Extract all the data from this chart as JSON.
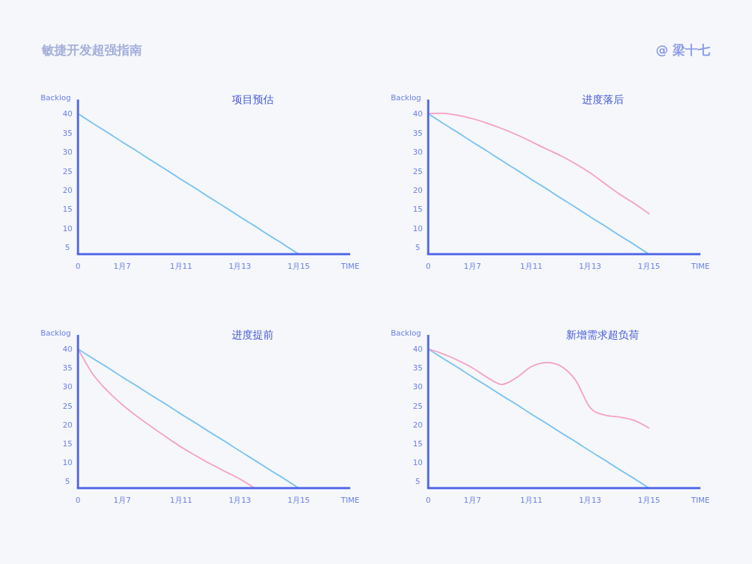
{
  "chart_data": [
    {
      "type": "line",
      "title": "项目预估",
      "ylabel": "Backlog",
      "xlabel": "TIME",
      "annotations": [
        "敏捷开发超强指南",
        "@ 梁十七"
      ],
      "categories": [
        "0",
        null,
        null,
        "1月7",
        null,
        null,
        null,
        "1月11",
        null,
        null,
        null,
        "1月13",
        null,
        null,
        null,
        "1月15",
        null,
        null,
        null
      ],
      "ylim": [
        3.2,
        43.7
      ],
      "yticks": [
        5,
        10,
        15,
        20,
        25,
        30,
        35,
        40
      ],
      "series": [
        {
          "color": "#7cc4f2",
          "values": [
            40,
            37.5,
            35.1,
            32.6,
            30.2,
            27.7,
            25.3,
            22.8,
            20.4,
            17.9,
            15.5,
            13,
            10.6,
            8.1,
            5.7,
            3.2,
            null,
            null,
            null
          ]
        }
      ]
    },
    {
      "type": "line",
      "title": "进度落后",
      "ylabel": "Backlog",
      "xlabel": "TIME",
      "categories": [
        "0",
        null,
        null,
        "1月7",
        null,
        null,
        null,
        "1月11",
        null,
        null,
        null,
        "1月13",
        null,
        null,
        null,
        "1月15",
        null,
        null,
        null
      ],
      "ylim": [
        3.2,
        43.7
      ],
      "yticks": [
        5,
        10,
        15,
        20,
        25,
        30,
        35,
        40
      ],
      "series": [
        {
          "color": "#7cc4f2",
          "values": [
            40,
            37.5,
            35.1,
            32.6,
            30.2,
            27.7,
            25.3,
            22.8,
            20.4,
            17.9,
            15.5,
            13,
            10.6,
            8.1,
            5.7,
            3.2,
            null,
            null,
            null
          ]
        },
        {
          "color": "#f5a3c7",
          "values": [
            40,
            40.1,
            39.6,
            38.7,
            37.5,
            36.1,
            34.5,
            32.7,
            30.8,
            29,
            26.9,
            24.5,
            21.7,
            18.9,
            16.5,
            13.8,
            null,
            null,
            null
          ]
        }
      ]
    },
    {
      "type": "line",
      "title": "进度提前",
      "ylabel": "Backlog",
      "xlabel": "TIME",
      "categories": [
        "0",
        null,
        null,
        "1月7",
        null,
        null,
        null,
        "1月11",
        null,
        null,
        null,
        "1月13",
        null,
        null,
        null,
        "1月15",
        null,
        null,
        null
      ],
      "ylim": [
        3.2,
        43.7
      ],
      "yticks": [
        5,
        10,
        15,
        20,
        25,
        30,
        35,
        40
      ],
      "series": [
        {
          "color": "#7cc4f2",
          "values": [
            40,
            37.5,
            35.1,
            32.6,
            30.2,
            27.7,
            25.3,
            22.8,
            20.4,
            17.9,
            15.5,
            13,
            10.6,
            8.1,
            5.7,
            3.2,
            null,
            null,
            null
          ]
        },
        {
          "color": "#f5a3c7",
          "values": [
            40,
            33.4,
            28.9,
            25.3,
            22.2,
            19.4,
            16.7,
            14.1,
            11.8,
            9.6,
            7.6,
            5.6,
            3.2,
            null,
            null,
            null,
            null,
            null,
            null
          ]
        }
      ]
    },
    {
      "type": "line",
      "title": "新增需求超负荷",
      "ylabel": "Backlog",
      "xlabel": "TIME",
      "categories": [
        "0",
        null,
        null,
        "1月7",
        null,
        null,
        null,
        "1月11",
        null,
        null,
        null,
        "1月13",
        null,
        null,
        null,
        "1月15",
        null,
        null,
        null
      ],
      "ylim": [
        3.2,
        43.7
      ],
      "yticks": [
        5,
        10,
        15,
        20,
        25,
        30,
        35,
        40
      ],
      "series": [
        {
          "color": "#7cc4f2",
          "values": [
            40,
            37.5,
            35.1,
            32.6,
            30.2,
            27.7,
            25.3,
            22.8,
            20.4,
            17.9,
            15.5,
            13,
            10.6,
            8.1,
            5.7,
            3.2,
            null,
            null,
            null
          ]
        },
        {
          "color": "#f5a3c7",
          "values": [
            40,
            38.7,
            37,
            35,
            32.5,
            30.6,
            32.4,
            35.3,
            36.4,
            35.5,
            31.8,
            24.5,
            22.5,
            22,
            21.1,
            19.1,
            null,
            null,
            null
          ]
        }
      ]
    }
  ]
}
